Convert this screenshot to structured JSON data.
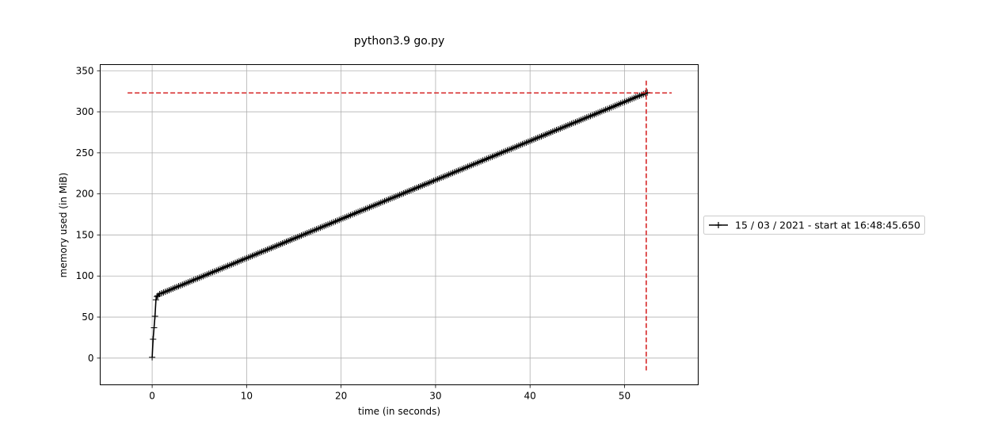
{
  "chart_data": {
    "type": "line",
    "title": "python3.9 go.py",
    "xlabel": "time (in seconds)",
    "ylabel": "memory used (in MiB)",
    "xlim": [
      -5.5,
      57.8
    ],
    "ylim": [
      -32.5,
      357.5
    ],
    "xticks": [
      0,
      10,
      20,
      30,
      40,
      50
    ],
    "yticks": [
      0,
      50,
      100,
      150,
      200,
      250,
      300,
      350
    ],
    "grid": true,
    "legend_position": "center-right",
    "series": [
      {
        "name": "15 / 03 / 2021 - start at 16:48:45.650",
        "color": "#000000",
        "marker": "+",
        "startup": {
          "x": [
            0.0,
            0.1,
            0.2,
            0.3,
            0.4,
            0.5,
            0.6,
            0.8
          ],
          "y": [
            1,
            23,
            37,
            51,
            71,
            75,
            76,
            78
          ]
        },
        "growth": {
          "x_start": 0.8,
          "x_end": 52.3,
          "step": 0.2,
          "y_start": 78,
          "y_end": 323
        }
      }
    ],
    "reference_lines": {
      "color": "#d62728",
      "style": "dashed",
      "max_memory": 323,
      "max_time": 52.3
    }
  }
}
